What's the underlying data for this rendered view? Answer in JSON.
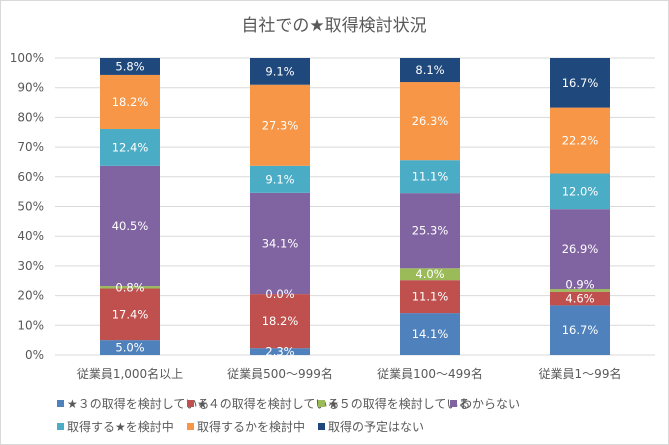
{
  "chart_data": {
    "type": "bar",
    "stacked": "percent",
    "title": "自社での★取得検討状況",
    "categories": [
      "従業員1,000名以上",
      "従業員500～999名",
      "従業員100～499名",
      "従業員1～99名"
    ],
    "ylim": [
      0,
      100
    ],
    "yticks": [
      "0%",
      "10%",
      "20%",
      "30%",
      "40%",
      "50%",
      "60%",
      "70%",
      "80%",
      "90%",
      "100%"
    ],
    "grid": true,
    "legend": "bottom",
    "series": [
      {
        "name": "★３の取得を検討している",
        "color": "#4F81BD",
        "values": [
          5.0,
          2.3,
          14.1,
          16.7
        ],
        "labels": [
          "5.0%",
          "2.3%",
          "14.1%",
          "16.7%"
        ]
      },
      {
        "name": "★４の取得を検討している",
        "color": "#C0504D",
        "values": [
          17.4,
          18.2,
          11.1,
          4.6
        ],
        "labels": [
          "17.4%",
          "18.2%",
          "11.1%",
          "4.6%"
        ]
      },
      {
        "name": "★５の取得を検討している",
        "color": "#9BBB59",
        "values": [
          0.8,
          0.0,
          4.0,
          0.9
        ],
        "labels": [
          "0.8%",
          "0.0%",
          "4.0%",
          "0.9%"
        ]
      },
      {
        "name": "わからない",
        "color": "#8064A2",
        "values": [
          40.5,
          34.1,
          25.3,
          26.9
        ],
        "labels": [
          "40.5%",
          "34.1%",
          "25.3%",
          "26.9%"
        ]
      },
      {
        "name": "取得する★を検討中",
        "color": "#4BACC6",
        "values": [
          12.4,
          9.1,
          11.1,
          12.0
        ],
        "labels": [
          "12.4%",
          "9.1%",
          "11.1%",
          "12.0%"
        ]
      },
      {
        "name": "取得するかを検討中",
        "color": "#F79646",
        "values": [
          18.2,
          27.3,
          26.3,
          22.2
        ],
        "labels": [
          "18.2%",
          "27.3%",
          "26.3%",
          "22.2%"
        ]
      },
      {
        "name": "取得の予定はない",
        "color": "#1F497D",
        "values": [
          5.8,
          9.1,
          8.1,
          16.7
        ],
        "labels": [
          "5.8%",
          "9.1%",
          "8.1%",
          "16.7%"
        ]
      }
    ]
  }
}
